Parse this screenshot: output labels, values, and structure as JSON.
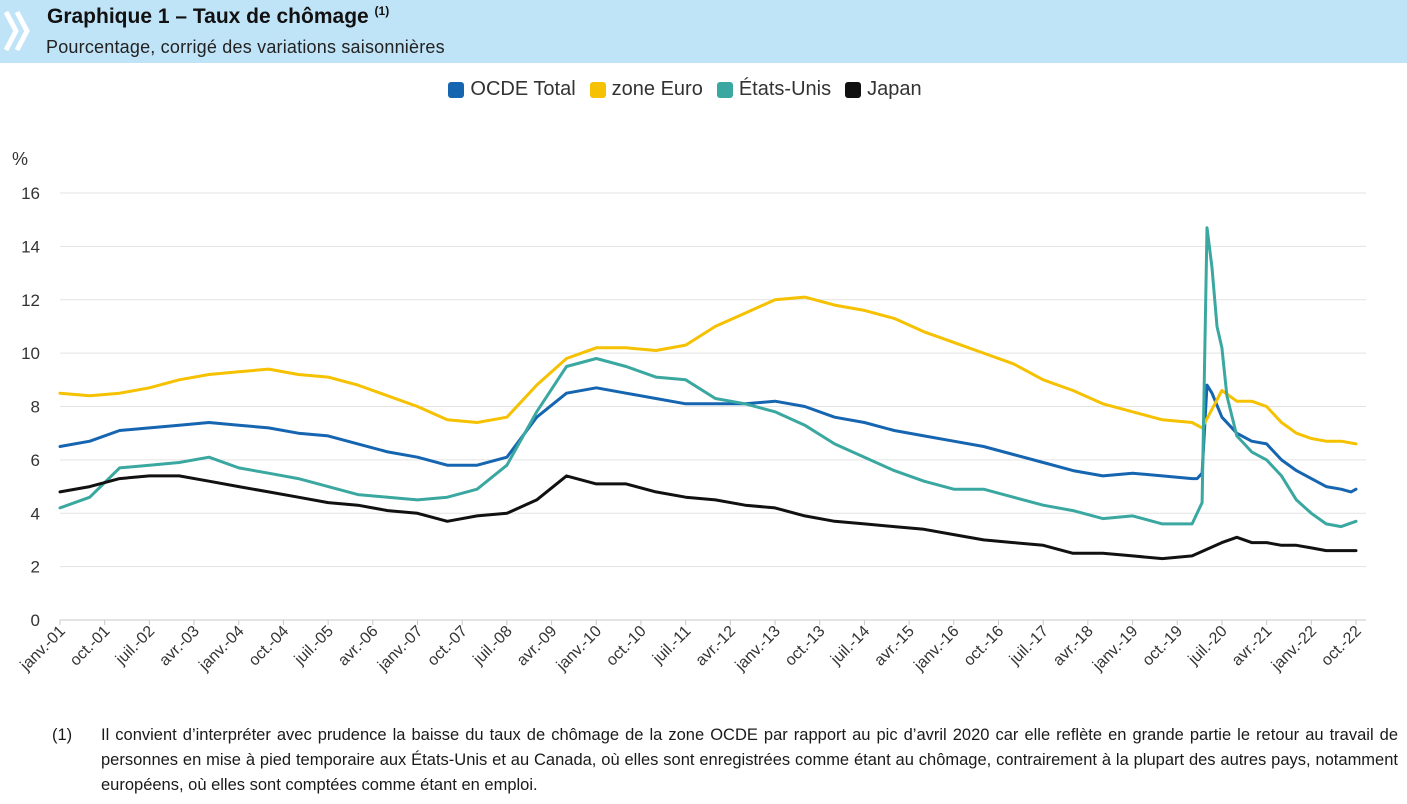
{
  "header": {
    "title": "Graphique 1 – Taux de chômage",
    "title_sup": "(1)",
    "subtitle": "Pourcentage, corrigé des variations saisonnières",
    "band_color": "#bfe3f7"
  },
  "footnote": {
    "number": "(1)",
    "text": "Il convient d’interpréter avec prudence la baisse du taux de chômage de la zone OCDE par rapport au pic d’avril 2020 car elle reflète en grande partie le retour au travail de personnes en mise à pied temporaire aux États-Unis et au Canada, où elles sont enregistrées comme étant au chômage, contrairement à la plupart des autres pays, notamment européens, où elles sont comptées comme étant en emploi."
  },
  "chart_data": {
    "type": "line",
    "ylabel": "%",
    "ylim": [
      0,
      16
    ],
    "yticks": [
      0,
      2,
      4,
      6,
      8,
      10,
      12,
      14,
      16
    ],
    "grid": "horizontal",
    "legend_position": "top-center",
    "x_tick_labels": [
      "janv.-01",
      "oct.-01",
      "juil.-02",
      "avr.-03",
      "janv.-04",
      "oct.-04",
      "juil.-05",
      "avr.-06",
      "janv.-07",
      "oct.-07",
      "juil.-08",
      "avr.-09",
      "janv.-10",
      "oct.-10",
      "juil.-11",
      "avr.-12",
      "janv.-13",
      "oct.-13",
      "juil.-14",
      "avr.-15",
      "janv.-16",
      "oct.-16",
      "juil.-17",
      "avr.-18",
      "janv.-19",
      "oct.-19",
      "juil.-20",
      "avr.-21",
      "janv.-22",
      "oct.-22"
    ],
    "x_range": [
      "janv.-01",
      "oct.-22"
    ],
    "series": [
      {
        "name": "OCDE Total",
        "color": "#1565b0",
        "points": [
          [
            "janv.-01",
            6.5
          ],
          [
            "juil.-01",
            6.7
          ],
          [
            "janv.-02",
            7.1
          ],
          [
            "juil.-02",
            7.2
          ],
          [
            "janv.-03",
            7.3
          ],
          [
            "juil.-03",
            7.4
          ],
          [
            "janv.-04",
            7.3
          ],
          [
            "juil.-04",
            7.2
          ],
          [
            "janv.-05",
            7.0
          ],
          [
            "juil.-05",
            6.9
          ],
          [
            "janv.-06",
            6.6
          ],
          [
            "juil.-06",
            6.3
          ],
          [
            "janv.-07",
            6.1
          ],
          [
            "juil.-07",
            5.8
          ],
          [
            "janv.-08",
            5.8
          ],
          [
            "juil.-08",
            6.1
          ],
          [
            "janv.-09",
            7.6
          ],
          [
            "juil.-09",
            8.5
          ],
          [
            "janv.-10",
            8.7
          ],
          [
            "juil.-10",
            8.5
          ],
          [
            "janv.-11",
            8.3
          ],
          [
            "juil.-11",
            8.1
          ],
          [
            "janv.-12",
            8.1
          ],
          [
            "juil.-12",
            8.1
          ],
          [
            "janv.-13",
            8.2
          ],
          [
            "juil.-13",
            8.0
          ],
          [
            "janv.-14",
            7.6
          ],
          [
            "juil.-14",
            7.4
          ],
          [
            "janv.-15",
            7.1
          ],
          [
            "juil.-15",
            6.9
          ],
          [
            "janv.-16",
            6.7
          ],
          [
            "juil.-16",
            6.5
          ],
          [
            "janv.-17",
            6.2
          ],
          [
            "juil.-17",
            5.9
          ],
          [
            "janv.-18",
            5.6
          ],
          [
            "juil.-18",
            5.4
          ],
          [
            "janv.-19",
            5.5
          ],
          [
            "juil.-19",
            5.4
          ],
          [
            "janv.-20",
            5.3
          ],
          [
            "févr.-20",
            5.3
          ],
          [
            "mars-20",
            5.5
          ],
          [
            "avr.-20",
            8.8
          ],
          [
            "mai-20",
            8.5
          ],
          [
            "juil.-20",
            7.6
          ],
          [
            "oct.-20",
            7.0
          ],
          [
            "janv.-21",
            6.7
          ],
          [
            "avr.-21",
            6.6
          ],
          [
            "juil.-21",
            6.0
          ],
          [
            "oct.-21",
            5.6
          ],
          [
            "janv.-22",
            5.3
          ],
          [
            "avr.-22",
            5.0
          ],
          [
            "juil.-22",
            4.9
          ],
          [
            "sept.-22",
            4.8
          ],
          [
            "oct.-22",
            4.9
          ]
        ]
      },
      {
        "name": "zone Euro",
        "color": "#f5c100",
        "points": [
          [
            "janv.-01",
            8.5
          ],
          [
            "juil.-01",
            8.4
          ],
          [
            "janv.-02",
            8.5
          ],
          [
            "juil.-02",
            8.7
          ],
          [
            "janv.-03",
            9.0
          ],
          [
            "juil.-03",
            9.2
          ],
          [
            "janv.-04",
            9.3
          ],
          [
            "juil.-04",
            9.4
          ],
          [
            "janv.-05",
            9.2
          ],
          [
            "juil.-05",
            9.1
          ],
          [
            "janv.-06",
            8.8
          ],
          [
            "juil.-06",
            8.4
          ],
          [
            "janv.-07",
            8.0
          ],
          [
            "juil.-07",
            7.5
          ],
          [
            "janv.-08",
            7.4
          ],
          [
            "juil.-08",
            7.6
          ],
          [
            "janv.-09",
            8.8
          ],
          [
            "juil.-09",
            9.8
          ],
          [
            "janv.-10",
            10.2
          ],
          [
            "juil.-10",
            10.2
          ],
          [
            "janv.-11",
            10.1
          ],
          [
            "juil.-11",
            10.3
          ],
          [
            "janv.-12",
            11.0
          ],
          [
            "juil.-12",
            11.5
          ],
          [
            "janv.-13",
            12.0
          ],
          [
            "juil.-13",
            12.1
          ],
          [
            "janv.-14",
            11.8
          ],
          [
            "juil.-14",
            11.6
          ],
          [
            "janv.-15",
            11.3
          ],
          [
            "juil.-15",
            10.8
          ],
          [
            "janv.-16",
            10.4
          ],
          [
            "juil.-16",
            10.0
          ],
          [
            "janv.-17",
            9.6
          ],
          [
            "juil.-17",
            9.0
          ],
          [
            "janv.-18",
            8.6
          ],
          [
            "juil.-18",
            8.1
          ],
          [
            "janv.-19",
            7.8
          ],
          [
            "juil.-19",
            7.5
          ],
          [
            "janv.-20",
            7.4
          ],
          [
            "mars-20",
            7.2
          ],
          [
            "juil.-20",
            8.6
          ],
          [
            "oct.-20",
            8.2
          ],
          [
            "janv.-21",
            8.2
          ],
          [
            "avr.-21",
            8.0
          ],
          [
            "juil.-21",
            7.4
          ],
          [
            "oct.-21",
            7.0
          ],
          [
            "janv.-22",
            6.8
          ],
          [
            "avr.-22",
            6.7
          ],
          [
            "juil.-22",
            6.7
          ],
          [
            "oct.-22",
            6.6
          ]
        ]
      },
      {
        "name": "États-Unis",
        "color": "#3aa8a0",
        "points": [
          [
            "janv.-01",
            4.2
          ],
          [
            "juil.-01",
            4.6
          ],
          [
            "janv.-02",
            5.7
          ],
          [
            "juil.-02",
            5.8
          ],
          [
            "janv.-03",
            5.9
          ],
          [
            "juil.-03",
            6.1
          ],
          [
            "janv.-04",
            5.7
          ],
          [
            "juil.-04",
            5.5
          ],
          [
            "janv.-05",
            5.3
          ],
          [
            "juil.-05",
            5.0
          ],
          [
            "janv.-06",
            4.7
          ],
          [
            "juil.-06",
            4.6
          ],
          [
            "janv.-07",
            4.5
          ],
          [
            "juil.-07",
            4.6
          ],
          [
            "janv.-08",
            4.9
          ],
          [
            "juil.-08",
            5.8
          ],
          [
            "janv.-09",
            7.8
          ],
          [
            "juil.-09",
            9.5
          ],
          [
            "janv.-10",
            9.8
          ],
          [
            "juil.-10",
            9.5
          ],
          [
            "janv.-11",
            9.1
          ],
          [
            "juil.-11",
            9.0
          ],
          [
            "janv.-12",
            8.3
          ],
          [
            "juil.-12",
            8.1
          ],
          [
            "janv.-13",
            7.8
          ],
          [
            "juil.-13",
            7.3
          ],
          [
            "janv.-14",
            6.6
          ],
          [
            "juil.-14",
            6.1
          ],
          [
            "janv.-15",
            5.6
          ],
          [
            "juil.-15",
            5.2
          ],
          [
            "janv.-16",
            4.9
          ],
          [
            "juil.-16",
            4.9
          ],
          [
            "janv.-17",
            4.6
          ],
          [
            "juil.-17",
            4.3
          ],
          [
            "janv.-18",
            4.1
          ],
          [
            "juil.-18",
            3.8
          ],
          [
            "janv.-19",
            3.9
          ],
          [
            "juil.-19",
            3.6
          ],
          [
            "janv.-20",
            3.6
          ],
          [
            "mars-20",
            4.4
          ],
          [
            "avr.-20",
            14.7
          ],
          [
            "mai-20",
            13.2
          ],
          [
            "juin-20",
            11.0
          ],
          [
            "juil.-20",
            10.2
          ],
          [
            "août-20",
            8.4
          ],
          [
            "oct.-20",
            6.9
          ],
          [
            "janv.-21",
            6.3
          ],
          [
            "avr.-21",
            6.0
          ],
          [
            "juil.-21",
            5.4
          ],
          [
            "oct.-21",
            4.5
          ],
          [
            "janv.-22",
            4.0
          ],
          [
            "avr.-22",
            3.6
          ],
          [
            "juil.-22",
            3.5
          ],
          [
            "oct.-22",
            3.7
          ]
        ]
      },
      {
        "name": "Japan",
        "color": "#111111",
        "points": [
          [
            "janv.-01",
            4.8
          ],
          [
            "juil.-01",
            5.0
          ],
          [
            "janv.-02",
            5.3
          ],
          [
            "juil.-02",
            5.4
          ],
          [
            "janv.-03",
            5.4
          ],
          [
            "juil.-03",
            5.2
          ],
          [
            "janv.-04",
            5.0
          ],
          [
            "juil.-04",
            4.8
          ],
          [
            "janv.-05",
            4.6
          ],
          [
            "juil.-05",
            4.4
          ],
          [
            "janv.-06",
            4.3
          ],
          [
            "juil.-06",
            4.1
          ],
          [
            "janv.-07",
            4.0
          ],
          [
            "juil.-07",
            3.7
          ],
          [
            "janv.-08",
            3.9
          ],
          [
            "juil.-08",
            4.0
          ],
          [
            "janv.-09",
            4.5
          ],
          [
            "juil.-09",
            5.4
          ],
          [
            "janv.-10",
            5.1
          ],
          [
            "juil.-10",
            5.1
          ],
          [
            "janv.-11",
            4.8
          ],
          [
            "juil.-11",
            4.6
          ],
          [
            "janv.-12",
            4.5
          ],
          [
            "juil.-12",
            4.3
          ],
          [
            "janv.-13",
            4.2
          ],
          [
            "juil.-13",
            3.9
          ],
          [
            "janv.-14",
            3.7
          ],
          [
            "juil.-14",
            3.6
          ],
          [
            "janv.-15",
            3.5
          ],
          [
            "juil.-15",
            3.4
          ],
          [
            "janv.-16",
            3.2
          ],
          [
            "juil.-16",
            3.0
          ],
          [
            "janv.-17",
            2.9
          ],
          [
            "juil.-17",
            2.8
          ],
          [
            "janv.-18",
            2.5
          ],
          [
            "juil.-18",
            2.5
          ],
          [
            "janv.-19",
            2.4
          ],
          [
            "juil.-19",
            2.3
          ],
          [
            "janv.-20",
            2.4
          ],
          [
            "juil.-20",
            2.9
          ],
          [
            "oct.-20",
            3.1
          ],
          [
            "janv.-21",
            2.9
          ],
          [
            "avr.-21",
            2.9
          ],
          [
            "juil.-21",
            2.8
          ],
          [
            "oct.-21",
            2.8
          ],
          [
            "janv.-22",
            2.7
          ],
          [
            "avr.-22",
            2.6
          ],
          [
            "juil.-22",
            2.6
          ],
          [
            "oct.-22",
            2.6
          ]
        ]
      }
    ]
  }
}
